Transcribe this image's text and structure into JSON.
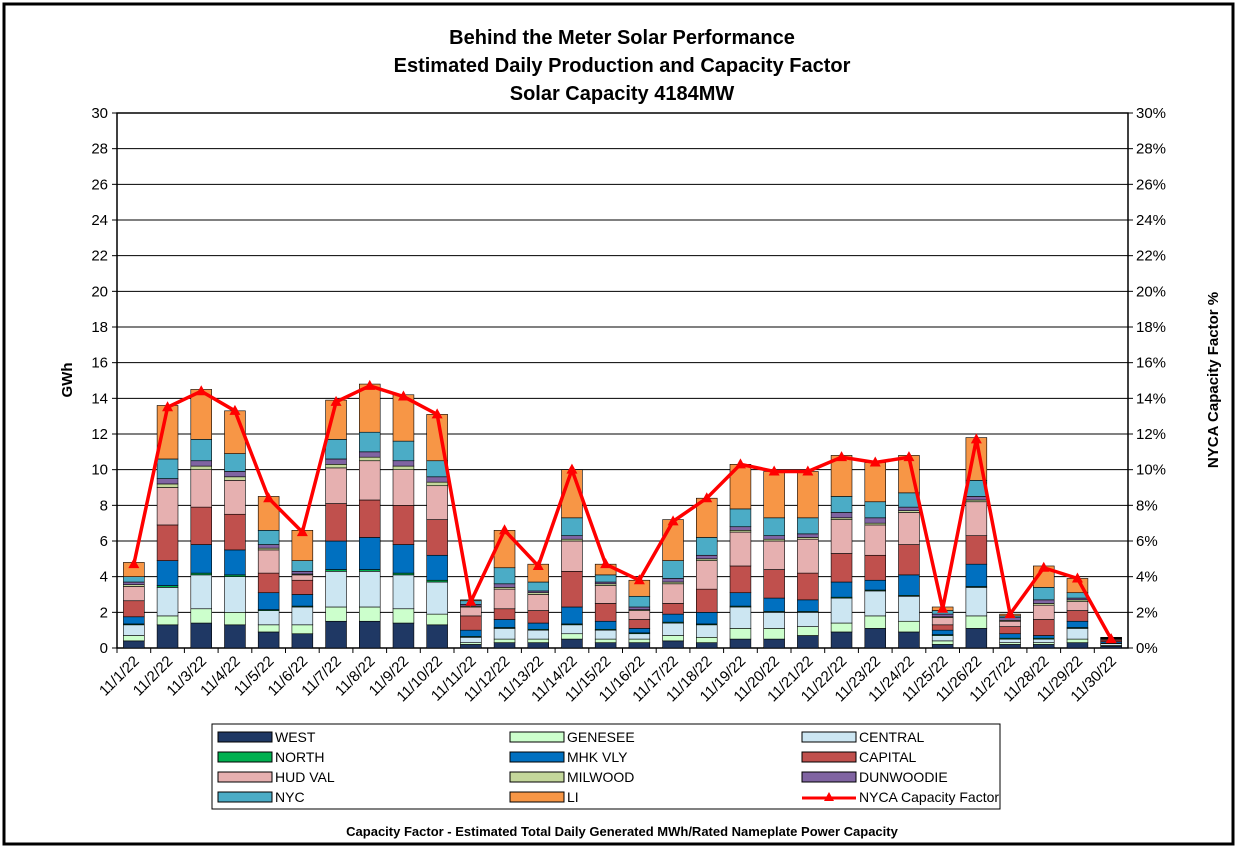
{
  "chart_data": {
    "type": "bar",
    "stacked": true,
    "title": [
      "Behind the Meter Solar Performance",
      "Estimated Daily Production and Capacity Factor",
      "Solar Capacity 4184MW"
    ],
    "y_label": "GWh",
    "y2_label": "NYCA Capacity Factor %",
    "footnote": "Capacity Factor  - Estimated Total Daily Generated MWh/Rated Nameplate Power Capacity",
    "categories": [
      "11/1/22",
      "11/2/22",
      "11/3/22",
      "11/4/22",
      "11/5/22",
      "11/6/22",
      "11/7/22",
      "11/8/22",
      "11/9/22",
      "11/10/22",
      "11/11/22",
      "11/12/22",
      "11/13/22",
      "11/14/22",
      "11/15/22",
      "11/16/22",
      "11/17/22",
      "11/18/22",
      "11/19/22",
      "11/20/22",
      "11/21/22",
      "11/22/22",
      "11/23/22",
      "11/24/22",
      "11/25/22",
      "11/26/22",
      "11/27/22",
      "11/28/22",
      "11/29/22",
      "11/30/22"
    ],
    "ylim": [
      0,
      30
    ],
    "yticks": [
      0,
      2,
      4,
      6,
      8,
      10,
      12,
      14,
      16,
      18,
      20,
      22,
      24,
      26,
      28,
      30
    ],
    "y2lim": [
      0,
      30
    ],
    "y2ticks": [
      {
        "value": 0,
        "label": "0%"
      },
      {
        "value": 2,
        "label": "2%"
      },
      {
        "value": 4,
        "label": "4%"
      },
      {
        "value": 6,
        "label": "6%"
      },
      {
        "value": 8,
        "label": "8%"
      },
      {
        "value": 10,
        "label": "10%"
      },
      {
        "value": 12,
        "label": "12%"
      },
      {
        "value": 14,
        "label": "14%"
      },
      {
        "value": 16,
        "label": "16%"
      },
      {
        "value": 18,
        "label": "18%"
      },
      {
        "value": 20,
        "label": "20%"
      },
      {
        "value": 22,
        "label": "22%"
      },
      {
        "value": 24,
        "label": "24%"
      },
      {
        "value": 26,
        "label": "26%"
      },
      {
        "value": 28,
        "label": "28%"
      },
      {
        "value": 30,
        "label": "30%"
      }
    ],
    "grid": true,
    "legend": "bottom",
    "series": [
      {
        "name": "WEST",
        "color": "#1f3864",
        "values": [
          0.4,
          1.3,
          1.4,
          1.3,
          0.9,
          0.8,
          1.5,
          1.5,
          1.4,
          1.3,
          0.2,
          0.3,
          0.3,
          0.5,
          0.3,
          0.3,
          0.4,
          0.3,
          0.5,
          0.5,
          0.7,
          0.9,
          1.1,
          0.9,
          0.2,
          1.1,
          0.2,
          0.2,
          0.3,
          0.1
        ]
      },
      {
        "name": "GENESEE",
        "color": "#ccffcc",
        "values": [
          0.3,
          0.5,
          0.8,
          0.7,
          0.4,
          0.5,
          0.8,
          0.8,
          0.8,
          0.6,
          0.1,
          0.2,
          0.2,
          0.3,
          0.2,
          0.2,
          0.3,
          0.3,
          0.6,
          0.6,
          0.5,
          0.5,
          0.7,
          0.6,
          0.2,
          0.7,
          0.1,
          0.1,
          0.2,
          0.05
        ]
      },
      {
        "name": "CENTRAL",
        "color": "#cce6f2",
        "values": [
          0.6,
          1.6,
          1.9,
          2.0,
          0.8,
          1.0,
          2.0,
          2.0,
          1.9,
          1.8,
          0.3,
          0.6,
          0.5,
          0.5,
          0.5,
          0.3,
          0.7,
          0.7,
          1.2,
          0.9,
          0.8,
          1.4,
          1.4,
          1.4,
          0.3,
          1.6,
          0.2,
          0.2,
          0.6,
          0.1
        ]
      },
      {
        "name": "NORTH",
        "color": "#00b050",
        "values": [
          0.05,
          0.1,
          0.1,
          0.1,
          0.05,
          0.05,
          0.1,
          0.1,
          0.1,
          0.1,
          0.05,
          0.05,
          0.05,
          0.05,
          0.05,
          0.05,
          0.05,
          0.05,
          0.05,
          0.05,
          0.05,
          0.05,
          0.05,
          0.05,
          0.05,
          0.05,
          0.05,
          0.05,
          0.05,
          0.02
        ]
      },
      {
        "name": "MHK VLY",
        "color": "#0070c0",
        "values": [
          0.4,
          1.4,
          1.6,
          1.4,
          0.95,
          0.65,
          1.6,
          1.8,
          1.6,
          1.4,
          0.35,
          0.45,
          0.35,
          0.95,
          0.45,
          0.25,
          0.45,
          0.65,
          0.75,
          0.75,
          0.65,
          0.85,
          0.55,
          1.15,
          0.25,
          1.25,
          0.25,
          0.15,
          0.35,
          0.08
        ]
      },
      {
        "name": "CAPITAL",
        "color": "#c0504d",
        "values": [
          0.9,
          2.0,
          2.1,
          2.0,
          1.1,
          0.8,
          2.1,
          2.1,
          2.2,
          2.0,
          0.8,
          0.6,
          0.7,
          2.0,
          1.0,
          0.5,
          0.6,
          1.3,
          1.5,
          1.6,
          1.5,
          1.6,
          1.4,
          1.7,
          0.3,
          1.6,
          0.4,
          0.9,
          0.6,
          0.1
        ]
      },
      {
        "name": "HUD VAL",
        "color": "#e6b0b0",
        "values": [
          0.8,
          2.1,
          2.1,
          1.9,
          1.3,
          0.3,
          2.0,
          2.2,
          2.0,
          1.9,
          0.5,
          1.1,
          0.9,
          1.7,
          1.0,
          0.5,
          1.1,
          1.6,
          1.9,
          1.6,
          1.9,
          1.9,
          1.7,
          1.8,
          0.4,
          1.9,
          0.3,
          0.8,
          0.5,
          0.05
        ]
      },
      {
        "name": "MILWOOD",
        "color": "#c4d79b",
        "values": [
          0.1,
          0.2,
          0.2,
          0.2,
          0.1,
          0.05,
          0.2,
          0.2,
          0.2,
          0.2,
          0.05,
          0.1,
          0.1,
          0.1,
          0.1,
          0.05,
          0.1,
          0.1,
          0.1,
          0.1,
          0.1,
          0.1,
          0.1,
          0.1,
          0.05,
          0.1,
          0.05,
          0.1,
          0.1,
          0.02
        ]
      },
      {
        "name": "DUNWOODIE",
        "color": "#8064a2",
        "values": [
          0.15,
          0.3,
          0.3,
          0.3,
          0.2,
          0.15,
          0.3,
          0.3,
          0.3,
          0.3,
          0.1,
          0.2,
          0.1,
          0.2,
          0.1,
          0.15,
          0.2,
          0.2,
          0.2,
          0.2,
          0.2,
          0.3,
          0.3,
          0.2,
          0.15,
          0.2,
          0.15,
          0.2,
          0.1,
          0.03
        ]
      },
      {
        "name": "NYC",
        "color": "#4bacc6",
        "values": [
          0.3,
          1.1,
          1.2,
          1.0,
          0.8,
          0.6,
          1.1,
          1.1,
          1.1,
          0.9,
          0.2,
          0.9,
          0.5,
          1.0,
          0.4,
          0.6,
          1.0,
          1.0,
          1.0,
          1.0,
          0.9,
          0.9,
          0.9,
          0.8,
          0.2,
          0.9,
          0.1,
          0.7,
          0.3,
          0.03
        ]
      },
      {
        "name": "LI",
        "color": "#f79646",
        "values": [
          0.8,
          3.0,
          2.8,
          2.4,
          1.9,
          1.7,
          2.2,
          2.7,
          2.6,
          2.6,
          0.05,
          2.1,
          1.0,
          2.7,
          0.6,
          0.9,
          2.3,
          2.2,
          2.5,
          2.6,
          2.6,
          2.3,
          2.2,
          2.1,
          0.2,
          2.4,
          0.1,
          1.2,
          0.8,
          0.02
        ]
      },
      {
        "name": "NYCA Capacity Factor",
        "color": "#ff0000",
        "type": "line",
        "axis": "y2",
        "values": [
          4.7,
          13.5,
          14.4,
          13.3,
          8.4,
          6.5,
          13.8,
          14.7,
          14.1,
          13.1,
          2.6,
          6.6,
          4.6,
          10.0,
          4.7,
          3.8,
          7.1,
          8.4,
          10.3,
          9.9,
          9.9,
          10.7,
          10.4,
          10.7,
          2.2,
          11.7,
          1.9,
          4.5,
          3.9,
          0.5
        ]
      }
    ]
  }
}
